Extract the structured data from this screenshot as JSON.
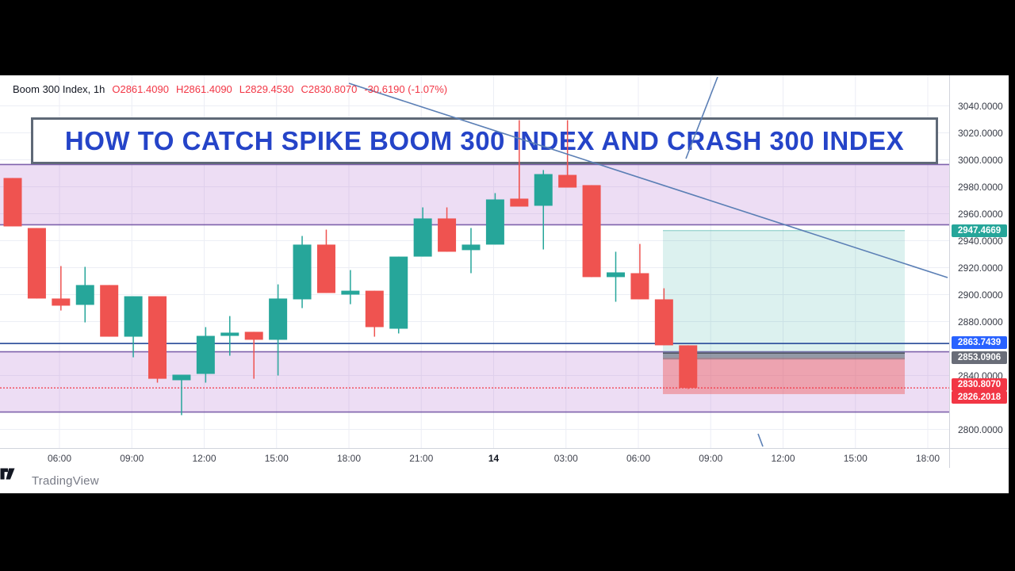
{
  "header": {
    "symbol": "Boom 300 Index, 1h",
    "o": "O2861.4090",
    "h": "H2861.4090",
    "l": "L2829.4530",
    "c": "C2830.8070",
    "change": "-30.6190 (-1.07%)"
  },
  "title_banner": {
    "text": "HOW TO CATCH SPIKE BOOM 300 INDEX AND CRASH 300 INDEX"
  },
  "watermark": {
    "brand": "TradingView",
    "logo_icon": "tradingview-logo"
  },
  "colors": {
    "up": "#26a69a",
    "down": "#ef5350",
    "grid": "#eceef5",
    "band_fill": "rgba(186,124,214,0.26)",
    "band_edge": "rgba(106,74,158,0.85)",
    "profit_fill": "rgba(38,166,154,0.16)",
    "profit_edge": "rgba(38,166,154,0.55)",
    "stop_fill": "rgba(239,83,80,0.42)",
    "entry_fill": "rgba(100,104,115,0.55)",
    "entry_edge": "#4f545f",
    "hline_blue": "#35569f",
    "close_dotted": "#f23645",
    "trend_line": "#5b7fb5",
    "badge_target": "#26a69a",
    "badge_blue": "#2962ff",
    "badge_entry": "#696d78",
    "badge_red": "#f23645"
  },
  "price_axis": {
    "labels": [
      {
        "text": "3040.0000",
        "price": 3040
      },
      {
        "text": "3020.0000",
        "price": 3020
      },
      {
        "text": "3000.0000",
        "price": 3000
      },
      {
        "text": "2980.0000",
        "price": 2980
      },
      {
        "text": "2960.0000",
        "price": 2960
      },
      {
        "text": "2940.0000",
        "price": 2940
      },
      {
        "text": "2920.0000",
        "price": 2920
      },
      {
        "text": "2900.0000",
        "price": 2900
      },
      {
        "text": "2880.0000",
        "price": 2880
      },
      {
        "text": "2840.0000",
        "price": 2840
      },
      {
        "text": "2800.0000",
        "price": 2800
      }
    ],
    "badges": [
      {
        "text": "2947.4669",
        "price": 2947.4669,
        "bg": "badge_target",
        "dy": 0
      },
      {
        "text": "2863.7439",
        "price": 2863.7439,
        "bg": "badge_blue",
        "dy": -1
      },
      {
        "text": "2853.0906",
        "price": 2853.0906,
        "bg": "badge_entry",
        "dy": 0
      },
      {
        "text": "2830.8070",
        "price": 2830.807,
        "bg": "badge_red",
        "dy": -4
      },
      {
        "text": "2826.2018",
        "price": 2826.2018,
        "bg": "badge_red",
        "dy": 4
      }
    ]
  },
  "time_axis": {
    "labels": [
      "06:00",
      "09:00",
      "12:00",
      "15:00",
      "18:00",
      "21:00",
      "14",
      "03:00",
      "06:00",
      "09:00",
      "12:00",
      "15:00",
      "18:00"
    ],
    "bold_index": 6
  },
  "chart_data": {
    "type": "candlestick",
    "title": "Boom 300 Index",
    "interval": "1h",
    "ylim": [
      2800,
      3040
    ],
    "grid": true,
    "candles": [
      {
        "o": 2986.5,
        "h": 2986.5,
        "l": 2950.6,
        "c": 2950.6
      },
      {
        "o": 2949.4,
        "h": 2949.4,
        "l": 2897.1,
        "c": 2897.1
      },
      {
        "o": 2897.1,
        "h": 2921.2,
        "l": 2888.2,
        "c": 2891.8
      },
      {
        "o": 2892.4,
        "h": 2920.6,
        "l": 2879.4,
        "c": 2907.1
      },
      {
        "o": 2907.1,
        "h": 2907.1,
        "l": 2868.8,
        "c": 2868.8
      },
      {
        "o": 2868.8,
        "h": 2898.8,
        "l": 2853.5,
        "c": 2898.8
      },
      {
        "o": 2898.8,
        "h": 2898.8,
        "l": 2834.7,
        "c": 2837.6
      },
      {
        "o": 2836.5,
        "h": 2840.6,
        "l": 2810.6,
        "c": 2840.6
      },
      {
        "o": 2841.2,
        "h": 2875.9,
        "l": 2834.7,
        "c": 2869.4
      },
      {
        "o": 2869.4,
        "h": 2884.1,
        "l": 2854.7,
        "c": 2871.8
      },
      {
        "o": 2872.4,
        "h": 2872.4,
        "l": 2837.6,
        "c": 2866.5
      },
      {
        "o": 2866.5,
        "h": 2907.6,
        "l": 2840.0,
        "c": 2897.1
      },
      {
        "o": 2896.5,
        "h": 2943.5,
        "l": 2890.0,
        "c": 2937.1
      },
      {
        "o": 2937.1,
        "h": 2948.2,
        "l": 2901.2,
        "c": 2901.2
      },
      {
        "o": 2900.0,
        "h": 2918.2,
        "l": 2892.9,
        "c": 2902.9
      },
      {
        "o": 2902.9,
        "h": 2902.9,
        "l": 2868.8,
        "c": 2875.9
      },
      {
        "o": 2874.7,
        "h": 2928.2,
        "l": 2871.2,
        "c": 2928.2
      },
      {
        "o": 2928.2,
        "h": 2964.7,
        "l": 2928.2,
        "c": 2956.5
      },
      {
        "o": 2956.5,
        "h": 2964.7,
        "l": 2931.8,
        "c": 2931.8
      },
      {
        "o": 2933.0,
        "h": 2949.4,
        "l": 2915.9,
        "c": 2937.1
      },
      {
        "o": 2937.1,
        "h": 2975.3,
        "l": 2937.1,
        "c": 2970.6
      },
      {
        "o": 2971.2,
        "h": 3029.4,
        "l": 2965.3,
        "c": 2965.3
      },
      {
        "o": 2965.9,
        "h": 2992.4,
        "l": 2933.5,
        "c": 2989.4
      },
      {
        "o": 2988.8,
        "h": 3029.4,
        "l": 2979.4,
        "c": 2979.4
      },
      {
        "o": 2981.2,
        "h": 2981.2,
        "l": 2913.0,
        "c": 2913.0
      },
      {
        "o": 2913.0,
        "h": 2931.8,
        "l": 2894.7,
        "c": 2916.5
      },
      {
        "o": 2915.9,
        "h": 2937.6,
        "l": 2896.5,
        "c": 2896.5
      },
      {
        "o": 2896.5,
        "h": 2904.7,
        "l": 2862.4,
        "c": 2862.4
      },
      {
        "o": 2862.4,
        "h": 2862.4,
        "l": 2830.0,
        "c": 2830.8
      }
    ],
    "bands": [
      {
        "name": "resistance-zone",
        "top": 2996.5,
        "bottom": 2951.8
      },
      {
        "name": "support-zone",
        "top": 2857.6,
        "bottom": 2812.9
      }
    ],
    "long_position": {
      "target": 2947.4669,
      "entry": 2853.0906,
      "stop": 2826.2018,
      "x1": 836,
      "x2": 1141
    },
    "hlines": [
      {
        "name": "blue-level",
        "price": 2863.7439,
        "style": "solid"
      },
      {
        "name": "close-price",
        "price": 2830.807,
        "style": "dotted"
      }
    ],
    "trend_lines": [
      {
        "x1": 440,
        "y1": 105,
        "x2": 1195,
        "y2": 350
      },
      {
        "x1": 865,
        "y1": 200,
        "x2": 905,
        "y2": 97
      },
      {
        "x1": 956,
        "y1": 547,
        "x2": 962,
        "y2": 563
      }
    ],
    "spike_wicks": [
      {
        "candle_index": 21,
        "from_price": 3029.4
      },
      {
        "candle_index": 23,
        "from_price": 3029.4
      }
    ],
    "legend_position": "top-left"
  }
}
